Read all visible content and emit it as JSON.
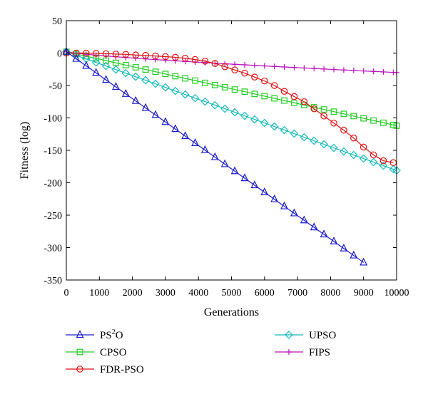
{
  "chart_data": {
    "type": "line",
    "xlabel": "Generations",
    "ylabel": "Fitness (log)",
    "xlim": [
      0,
      10000
    ],
    "ylim": [
      -350,
      50
    ],
    "xticks": [
      0,
      1000,
      2000,
      3000,
      4000,
      5000,
      6000,
      7000,
      8000,
      9000,
      10000
    ],
    "yticks": [
      50,
      0,
      -50,
      -100,
      -150,
      -200,
      -250,
      -300,
      -350
    ],
    "grid": false,
    "legend_position": "bottom",
    "series": [
      {
        "name": "PS²O",
        "name_base": "PS",
        "name_sup": "2",
        "name_tail": "O",
        "color": "#1a1acc",
        "marker": "triangle",
        "x_start": 0,
        "x_end": 9000,
        "x_step": 300,
        "y_start": 2,
        "y_end": -323,
        "curve": "linear"
      },
      {
        "name": "CPSO",
        "color": "#22cc22",
        "marker": "square",
        "x_start": 0,
        "x_end": 10000,
        "x_step": 300,
        "y_start": 2,
        "y_end": -112,
        "curve": "linear"
      },
      {
        "name": "FDR-PSO",
        "color": "#dd1111",
        "marker": "circle",
        "x": [
          0,
          300,
          600,
          900,
          1200,
          1500,
          1800,
          2100,
          2400,
          2700,
          3000,
          3300,
          3600,
          3900,
          4200,
          4500,
          4800,
          5100,
          5400,
          5700,
          6000,
          6300,
          6600,
          6900,
          7200,
          7500,
          7800,
          8100,
          8400,
          8700,
          9000,
          9300,
          9600,
          9900
        ],
        "y": [
          0,
          0,
          0,
          -0.5,
          -1,
          -1.5,
          -2,
          -3,
          -3.5,
          -4.5,
          -5.5,
          -6.5,
          -8,
          -10,
          -12.5,
          -16,
          -21,
          -26,
          -31,
          -37,
          -43,
          -50,
          -59,
          -67,
          -75,
          -86,
          -97,
          -108,
          -119,
          -131,
          -145,
          -157,
          -166,
          -169
        ]
      },
      {
        "name": "UPSO",
        "color": "#17b8b8",
        "marker": "diamond",
        "x_start": 0,
        "x_end": 10000,
        "x_step": 300,
        "y_start": 2,
        "y_end": -181,
        "curve": "linear"
      },
      {
        "name": "FIPS",
        "color": "#bb11bb",
        "marker": "plus",
        "x_start": 0,
        "x_end": 10000,
        "x_step": 300,
        "y_start": 2,
        "y_end": -30,
        "curve": "sqrt"
      }
    ]
  }
}
